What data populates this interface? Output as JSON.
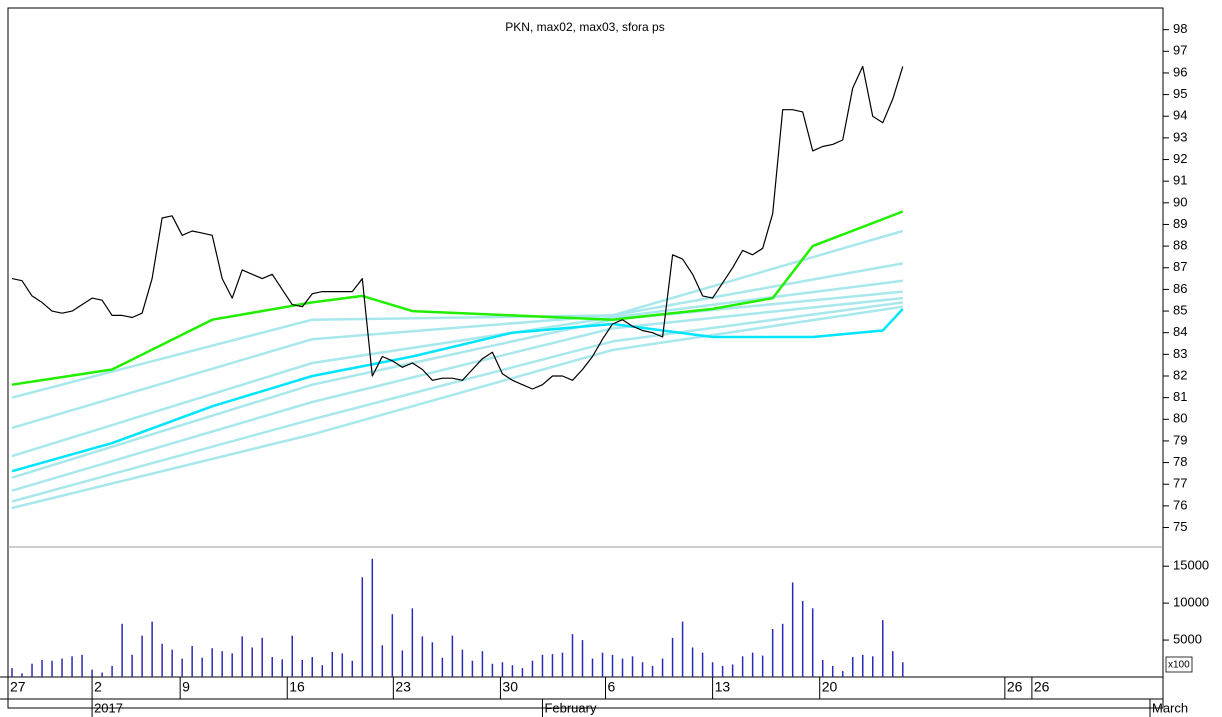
{
  "chart_data": [
    {
      "type": "line",
      "title": "PKN, max02, max03, sfora ps",
      "xlim": [
        -0.4,
        115
      ],
      "ylim": [
        74.1,
        99.0
      ],
      "yticks": [
        75,
        76,
        77,
        78,
        79,
        80,
        81,
        82,
        83,
        84,
        85,
        86,
        87,
        88,
        89,
        90,
        91,
        92,
        93,
        94,
        95,
        96,
        97,
        98
      ],
      "series": [
        {
          "color": "#a8e8ec",
          "x": [
            0,
            30,
            60,
            89
          ],
          "values": [
            81.0,
            84.6,
            84.8,
            88.7
          ]
        },
        {
          "color": "#a8e8ec",
          "x": [
            0,
            30,
            60,
            89
          ],
          "values": [
            79.6,
            83.7,
            84.8,
            87.2
          ]
        },
        {
          "color": "#a8e8ec",
          "x": [
            0,
            30,
            60,
            89
          ],
          "values": [
            78.3,
            82.6,
            84.7,
            86.4
          ]
        },
        {
          "color": "#a8e8ec",
          "x": [
            0,
            30,
            60,
            89
          ],
          "values": [
            77.3,
            81.6,
            84.6,
            85.9
          ]
        },
        {
          "color": "#a8e8ec",
          "x": [
            0,
            30,
            60,
            89
          ],
          "values": [
            76.7,
            80.8,
            84.2,
            85.6
          ]
        },
        {
          "color": "#a8e8ec",
          "x": [
            0,
            30,
            60,
            89
          ],
          "values": [
            76.2,
            80.0,
            83.6,
            85.4
          ]
        },
        {
          "color": "#a8e8ec",
          "x": [
            0,
            30,
            60,
            89
          ],
          "values": [
            75.9,
            79.3,
            83.2,
            85.2
          ]
        },
        {
          "color": "#00e5ff",
          "x": [
            0,
            10,
            20,
            30,
            40,
            50,
            60,
            70,
            80,
            87,
            89
          ],
          "values": [
            77.6,
            78.9,
            80.6,
            82.0,
            82.9,
            84.0,
            84.4,
            83.8,
            83.8,
            84.1,
            85.1
          ]
        },
        {
          "color": "#22ee00",
          "x": [
            0,
            10,
            20,
            30,
            35,
            40,
            50,
            60,
            70,
            76,
            80,
            89
          ],
          "values": [
            81.6,
            82.3,
            84.6,
            85.4,
            85.7,
            85.0,
            84.8,
            84.6,
            85.1,
            85.6,
            88.0,
            89.6
          ]
        },
        {
          "color": "#000000",
          "x": [
            0,
            1,
            2,
            3,
            4,
            5,
            6,
            7,
            8,
            9,
            10,
            11,
            12,
            13,
            14,
            15,
            16,
            17,
            18,
            19,
            20,
            21,
            22,
            23,
            24,
            25,
            26,
            27,
            28,
            29,
            30,
            31,
            32,
            33,
            34,
            35,
            36,
            37,
            38,
            39,
            40,
            41,
            42,
            43,
            44,
            45,
            46,
            47,
            48,
            49,
            50,
            51,
            52,
            53,
            54,
            55,
            56,
            57,
            58,
            59,
            60,
            61,
            62,
            63,
            64,
            65,
            66,
            67,
            68,
            69,
            70,
            71,
            72,
            73,
            74,
            75,
            76,
            77,
            78,
            79,
            80,
            81,
            82,
            83,
            84,
            85,
            86,
            87,
            88,
            89
          ],
          "values": [
            86.5,
            86.4,
            85.7,
            85.4,
            85.0,
            84.9,
            85.0,
            85.3,
            85.6,
            85.5,
            84.8,
            84.8,
            84.7,
            84.9,
            86.5,
            89.3,
            89.4,
            88.5,
            88.7,
            88.6,
            88.5,
            86.5,
            85.6,
            86.9,
            86.7,
            86.5,
            86.7,
            86.0,
            85.3,
            85.2,
            85.8,
            85.9,
            85.9,
            85.9,
            85.9,
            86.5,
            82.0,
            82.9,
            82.7,
            82.4,
            82.6,
            82.3,
            81.8,
            81.9,
            81.9,
            81.8,
            82.3,
            82.8,
            83.1,
            82.1,
            81.8,
            81.6,
            81.4,
            81.6,
            82.0,
            82.0,
            81.8,
            82.3,
            82.9,
            83.7,
            84.4,
            84.6,
            84.3,
            84.1,
            84.0,
            83.8,
            87.6,
            87.4,
            86.7,
            85.7,
            85.6,
            86.3,
            87.0,
            87.8,
            87.6,
            87.9,
            89.5,
            94.3,
            94.3,
            94.2,
            92.4,
            92.6,
            92.7,
            92.9,
            95.3,
            96.3,
            94.0,
            93.7,
            94.8,
            96.3
          ]
        }
      ]
    },
    {
      "type": "bar",
      "color": "#2a2ab8",
      "unit": "x100",
      "xlim": [
        -0.4,
        115
      ],
      "ylim": [
        0,
        17600
      ],
      "yticks": [
        5000,
        10000,
        15000
      ],
      "x": [
        0,
        1,
        2,
        3,
        4,
        5,
        6,
        7,
        8,
        9,
        10,
        11,
        12,
        13,
        14,
        15,
        16,
        17,
        18,
        19,
        20,
        21,
        22,
        23,
        24,
        25,
        26,
        27,
        28,
        29,
        30,
        31,
        32,
        33,
        34,
        35,
        36,
        37,
        38,
        39,
        40,
        41,
        42,
        43,
        44,
        45,
        46,
        47,
        48,
        49,
        50,
        51,
        52,
        53,
        54,
        55,
        56,
        57,
        58,
        59,
        60,
        61,
        62,
        63,
        64,
        65,
        66,
        67,
        68,
        69,
        70,
        71,
        72,
        73,
        74,
        75,
        76,
        77,
        78,
        79,
        80,
        81,
        82,
        83,
        84,
        85,
        86,
        87,
        88,
        89
      ],
      "values": [
        1200,
        500,
        1800,
        2300,
        2200,
        2500,
        2800,
        3000,
        1000,
        600,
        1500,
        7200,
        3000,
        5600,
        7500,
        4500,
        3700,
        2500,
        4200,
        2600,
        3900,
        3500,
        3200,
        5500,
        4000,
        5300,
        2700,
        2400,
        5600,
        2300,
        2700,
        1600,
        3400,
        3200,
        2200,
        13500,
        16000,
        4300,
        8500,
        3600,
        9300,
        5500,
        4700,
        2600,
        5600,
        3700,
        2200,
        3500,
        1800,
        2000,
        1600,
        1200,
        2200,
        3000,
        3100,
        3300,
        5800,
        5000,
        2500,
        3300,
        3000,
        2500,
        2800,
        2000,
        1500,
        2500,
        5300,
        7500,
        4000,
        3300,
        2000,
        1500,
        1700,
        2800,
        3300,
        2900,
        6500,
        7200,
        12800,
        10300,
        9300,
        2300,
        1500,
        800,
        2700,
        3000,
        2800,
        7700,
        3500,
        2000
      ],
      "xticks": [
        {
          "value": -0.4,
          "label": "27"
        },
        {
          "value": 8.0,
          "label": "2"
        },
        {
          "value": 16.8,
          "label": "9"
        },
        {
          "value": 27.5,
          "label": "16"
        },
        {
          "value": 38.1,
          "label": "23"
        },
        {
          "value": 48.8,
          "label": "30"
        },
        {
          "value": 59.3,
          "label": "6"
        },
        {
          "value": 70.0,
          "label": "13"
        },
        {
          "value": 80.7,
          "label": "20"
        },
        {
          "value": 99.2,
          "label": "26"
        },
        {
          "value": 101.9,
          "label": "26"
        }
      ],
      "period_ticks": [
        {
          "value": 8.0,
          "label": "2017"
        },
        {
          "value": 53.0,
          "label": "February"
        },
        {
          "value": 113.7,
          "label": "March"
        }
      ]
    }
  ]
}
